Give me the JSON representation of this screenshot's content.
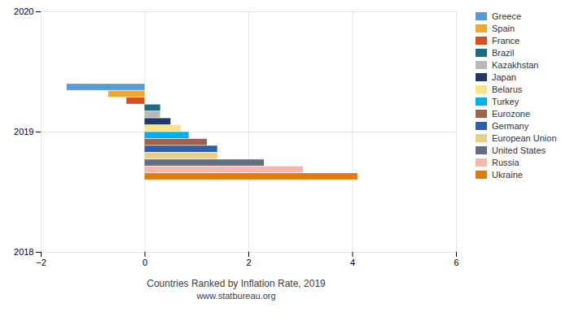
{
  "chart_data": {
    "type": "bar",
    "orientation": "horizontal",
    "title": "Countries Ranked by Inflation Rate, 2019",
    "subtitle": "www.statbureau.org",
    "x": [
      2019
    ],
    "series": [
      {
        "name": "Greece",
        "color": "#5b9bd5",
        "values": [
          -1.5
        ]
      },
      {
        "name": "Spain",
        "color": "#f0a830",
        "values": [
          -0.7
        ]
      },
      {
        "name": "France",
        "color": "#d94f1e",
        "values": [
          -0.35
        ]
      },
      {
        "name": "Brazil",
        "color": "#1a6e82",
        "values": [
          0.3
        ]
      },
      {
        "name": "Kazakhstan",
        "color": "#b8b8b8",
        "values": [
          0.3
        ]
      },
      {
        "name": "Japan",
        "color": "#1f3864",
        "values": [
          0.5
        ]
      },
      {
        "name": "Belarus",
        "color": "#fce484",
        "values": [
          0.7
        ]
      },
      {
        "name": "Turkey",
        "color": "#00b0f0",
        "values": [
          0.85
        ]
      },
      {
        "name": "Eurozone",
        "color": "#a0614d",
        "values": [
          1.2
        ]
      },
      {
        "name": "Germany",
        "color": "#2e5faa",
        "values": [
          1.4
        ]
      },
      {
        "name": "European Union",
        "color": "#e8d08a",
        "values": [
          1.4
        ]
      },
      {
        "name": "United States",
        "color": "#636f80",
        "values": [
          2.3
        ]
      },
      {
        "name": "Russia",
        "color": "#f4b8a8",
        "values": [
          3.05
        ]
      },
      {
        "name": "Ukraine",
        "color": "#e07b10",
        "values": [
          4.1
        ]
      }
    ],
    "xlim": [
      -2,
      6
    ],
    "xticks": [
      -2,
      0,
      2,
      4,
      6
    ],
    "ylim": [
      2018,
      2020
    ],
    "yticks": [
      2018,
      2019,
      2020
    ],
    "grid": true,
    "legend": "right"
  }
}
